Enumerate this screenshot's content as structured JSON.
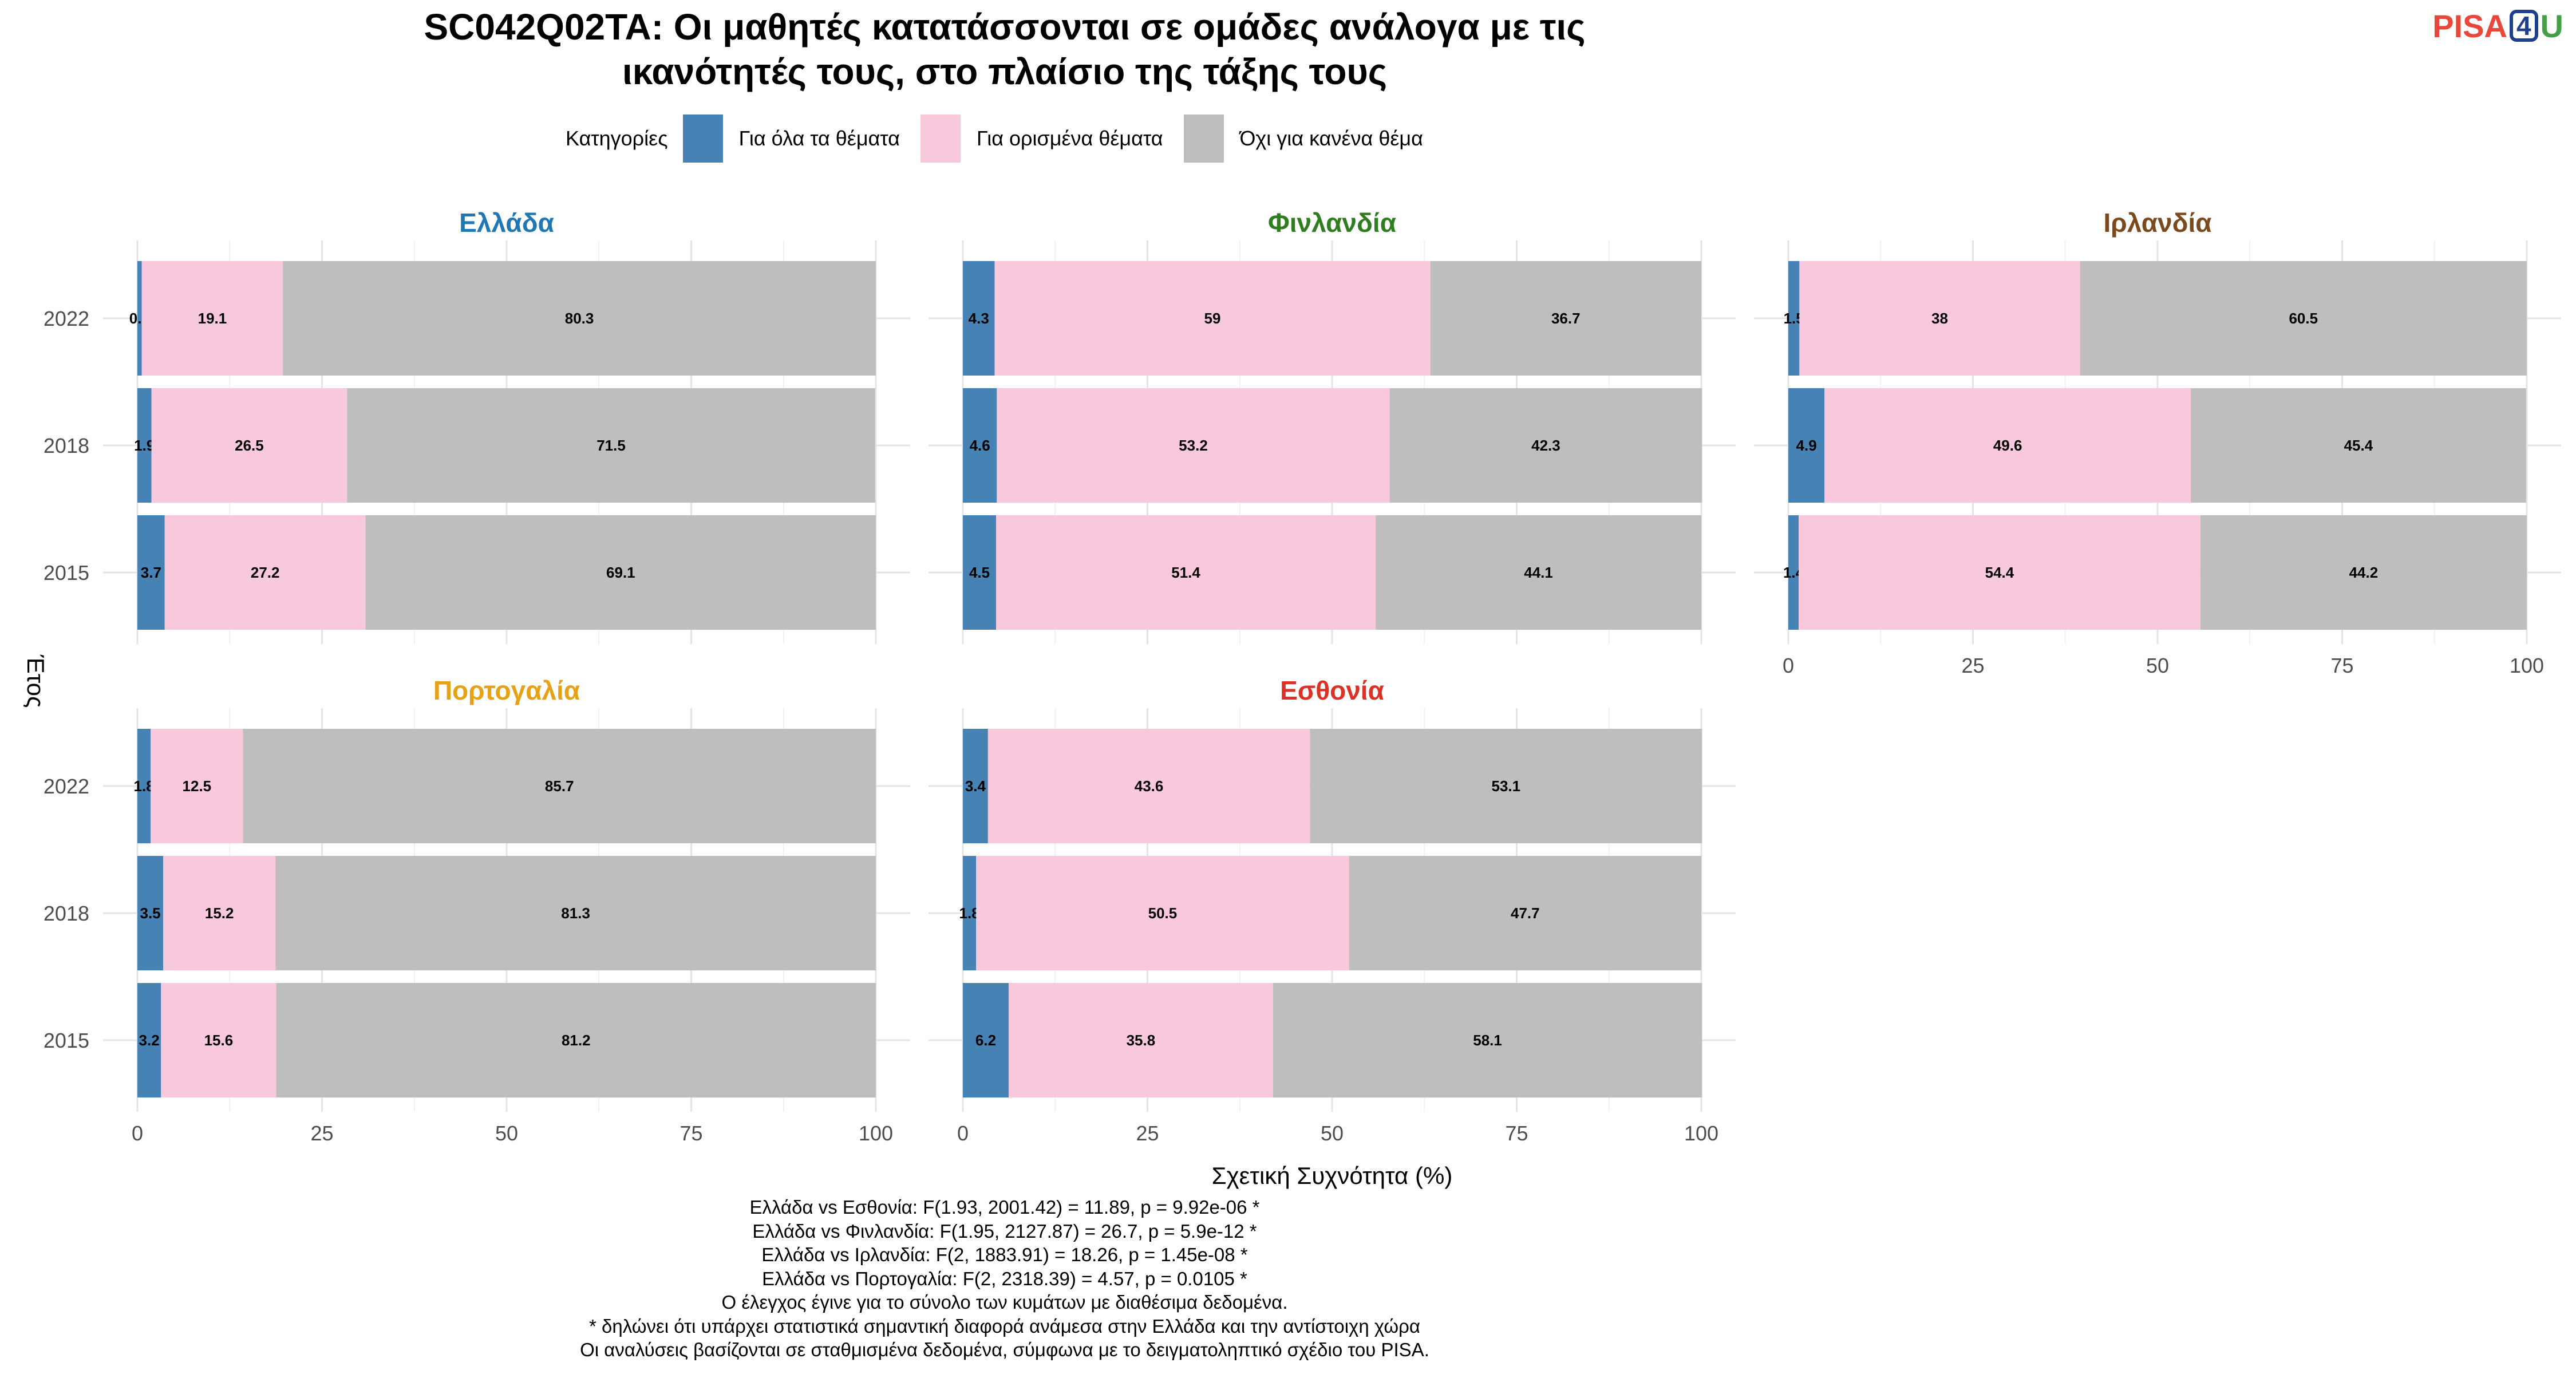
{
  "title_lines": [
    "SC042Q02TA: Οι μαθητές κατατάσσονται σε ομάδες ανάλογα με τις",
    "ικανότητές τους, στο πλαίσιο της τάξης τους"
  ],
  "logo": {
    "part1": "PISA",
    "part2": "4",
    "part3": "U"
  },
  "legend": {
    "title": "Κατηγορίες",
    "items": [
      {
        "label": "Για όλα τα θέματα",
        "color": "#4682b4"
      },
      {
        "label": "Για ορισμένα θέματα",
        "color": "#f8c8dc"
      },
      {
        "label": "Όχι για κανένα θέμα",
        "color": "#bebebe"
      }
    ]
  },
  "chart_data": {
    "type": "bar",
    "orientation": "horizontal",
    "stacked": true,
    "xlabel": "Σχετική Συχνότητα (%)",
    "ylabel": "Έτος",
    "xlim": [
      0,
      100
    ],
    "xticks": [
      0,
      25,
      50,
      75,
      100
    ],
    "categories": [
      "2022",
      "2018",
      "2015"
    ],
    "series_names": [
      "Για όλα τα θέματα",
      "Για ορισμένα θέματα",
      "Όχι για κανένα θέμα"
    ],
    "series_colors": [
      "#4682b4",
      "#f8c8dc",
      "#bebebe"
    ],
    "panels": [
      {
        "name": "Ελλάδα",
        "color": "#1f77b4",
        "values": {
          "2022": [
            0.6,
            19.1,
            80.3
          ],
          "2018": [
            1.9,
            26.5,
            71.5
          ],
          "2015": [
            3.7,
            27.2,
            69.1
          ]
        }
      },
      {
        "name": "Φινλανδία",
        "color": "#2e7d1f",
        "values": {
          "2022": [
            4.3,
            59,
            36.7
          ],
          "2018": [
            4.6,
            53.2,
            42.3
          ],
          "2015": [
            4.5,
            51.4,
            44.1
          ]
        }
      },
      {
        "name": "Ιρλανδία",
        "color": "#7a4a1e",
        "values": {
          "2022": [
            1.5,
            38,
            60.5
          ],
          "2018": [
            4.9,
            49.6,
            45.4
          ],
          "2015": [
            1.4,
            54.4,
            44.2
          ]
        }
      },
      {
        "name": "Πορτογαλία",
        "color": "#e6a117",
        "values": {
          "2022": [
            1.8,
            12.5,
            85.7
          ],
          "2018": [
            3.5,
            15.2,
            81.3
          ],
          "2015": [
            3.2,
            15.6,
            81.2
          ]
        }
      },
      {
        "name": "Εσθονία",
        "color": "#dc3226",
        "values": {
          "2022": [
            3.4,
            43.6,
            53.1
          ],
          "2018": [
            1.8,
            50.5,
            47.7
          ],
          "2015": [
            6.2,
            35.8,
            58.1
          ]
        }
      }
    ]
  },
  "footer_lines": [
    "Ελλάδα vs Εσθονία: F(1.93, 2001.42) = 11.89, p = 9.92e-06 *",
    "Ελλάδα vs Φινλανδία: F(1.95, 2127.87) = 26.7, p = 5.9e-12 *",
    "Ελλάδα vs Ιρλανδία: F(2, 1883.91) = 18.26, p = 1.45e-08 *",
    "Ελλάδα vs Πορτογαλία: F(2, 2318.39) = 4.57, p = 0.0105 *",
    "Ο έλεγχος έγινε για το σύνολο των κυμάτων με διαθέσιμα δεδομένα.",
    "* δηλώνει ότι υπάρχει στατιστικά σημαντική διαφορά ανάμεσα στην Ελλάδα και την αντίστοιχη χώρα",
    "Οι αναλύσεις βασίζονται σε σταθμισμένα δεδομένα, σύμφωνα με το δειγματοληπτικό σχέδιο του PISA."
  ]
}
